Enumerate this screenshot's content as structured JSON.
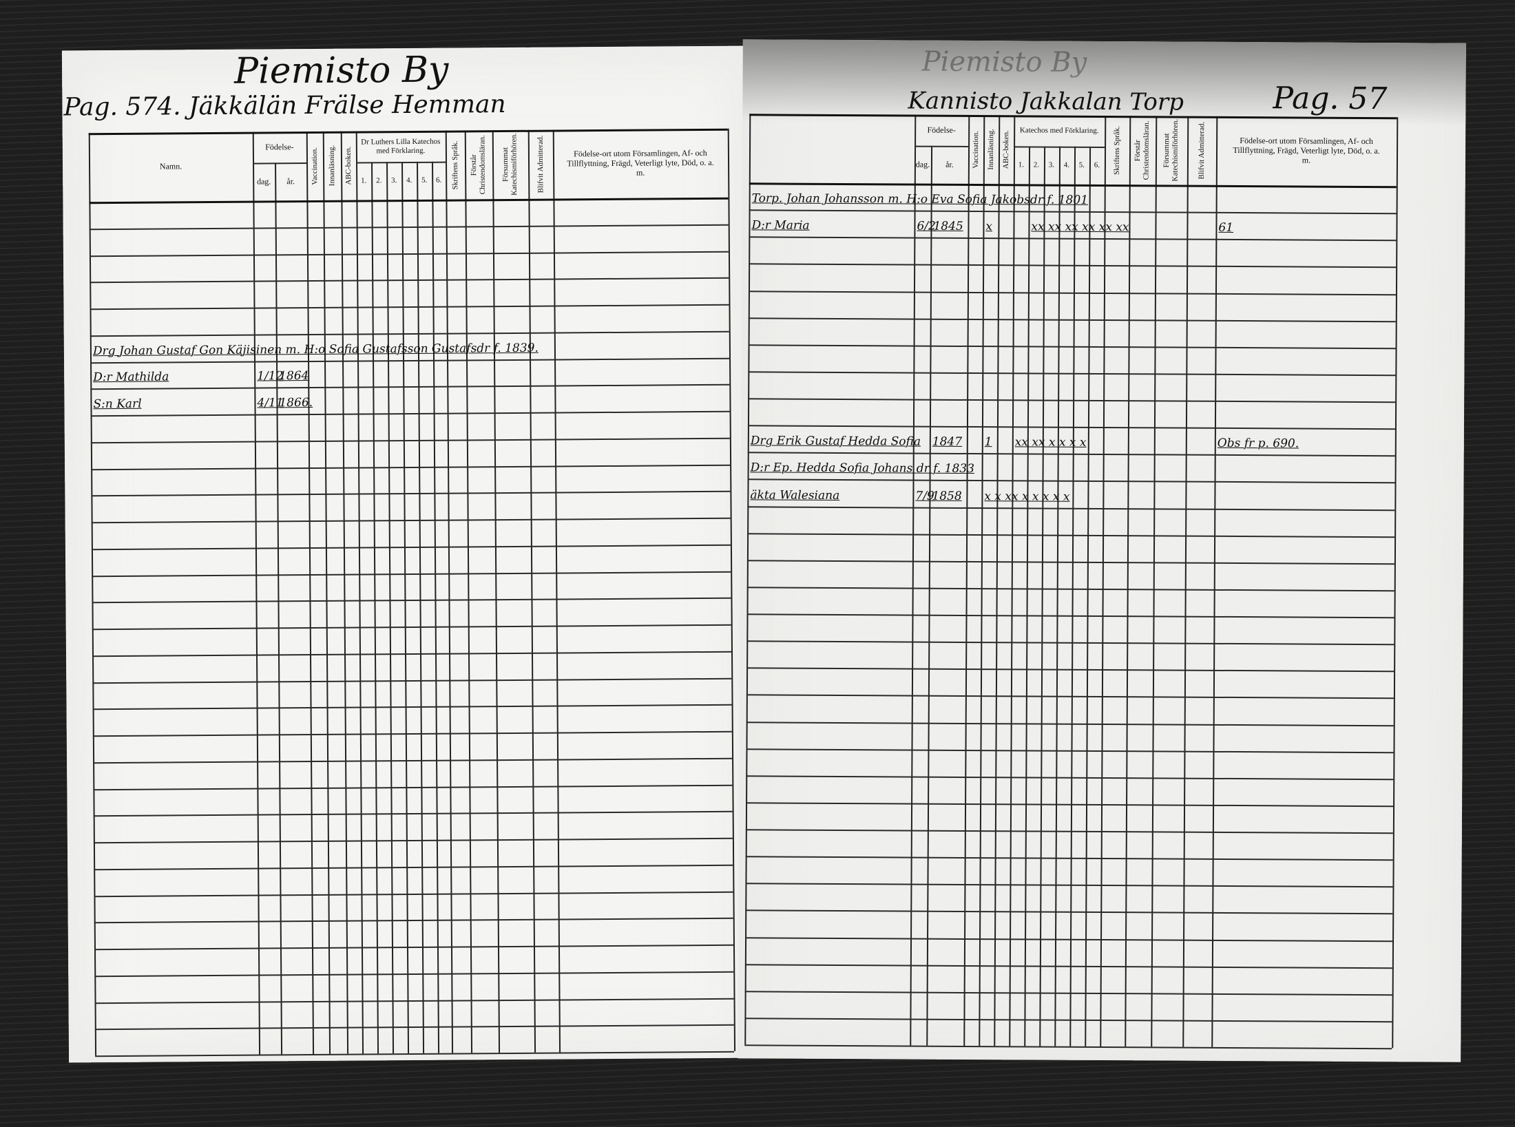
{
  "left_page": {
    "village_title": "Piemisto By",
    "page_title": "Pag. 574. Jäkkälän Frälse Hemman",
    "headers": {
      "name": "Namn.",
      "birth": "Födelse-",
      "day": "dag.",
      "year": "år.",
      "vaccination": "Vaccination.",
      "reading": "Innanläsning.",
      "abc": "ABC-boken.",
      "catechism": "Dr Luthers Lilla Katechos med Förklaring.",
      "cat_nums": [
        "1.",
        "2.",
        "3.",
        "4.",
        "5.",
        "6."
      ],
      "scripture": "Skriftens Språk.",
      "christendom": "Förstår Christendomsläran.",
      "neglected": "Försummat Katechismiförhören.",
      "admitted": "Blifvit Admitterad.",
      "remarks": "Födelse-ort utom Församlingen, Af- och Tillflyttning, Frägd, Veterligt lyte, Död, o. a. m."
    },
    "entries": [
      {
        "row": 5,
        "cells": [
          {
            "col": 0,
            "text": "Drg Johan Gustaf Gon Käjisinen m. H:o Sofia Gustafsson Gustafsdr f. 1839."
          }
        ]
      },
      {
        "row": 6,
        "cells": [
          {
            "col": 0,
            "text": "D:r Mathilda"
          },
          {
            "col": 1,
            "text": "1/12"
          },
          {
            "col": 2,
            "text": "1864"
          }
        ]
      },
      {
        "row": 7,
        "cells": [
          {
            "col": 0,
            "text": "S:n Karl"
          },
          {
            "col": 1,
            "text": "4/11"
          },
          {
            "col": 2,
            "text": "1866."
          }
        ]
      }
    ]
  },
  "right_page": {
    "village_title": "Piemisto By",
    "page_title": "Kannisto Jakkalan Torp",
    "page_number": "Pag. 57",
    "headers": {
      "birth": "Födelse-",
      "day": "dag.",
      "year": "år.",
      "vaccination": "Vaccination.",
      "reading": "Innanläsning.",
      "abc": "ABC-boken.",
      "catechism": "Katechos med Förklaring.",
      "cat_nums": [
        "1.",
        "2.",
        "3.",
        "4.",
        "5.",
        "6."
      ],
      "scripture": "Skriftens Språk.",
      "christendom": "Förstår Christendomsläran.",
      "neglected": "Försummat Katechismiförhören.",
      "admitted": "Blifvit Admitterad.",
      "remarks": "Födelse-ort utom Församlingen, Af- och Tillflyttning, Frägd, Veterligt lyte, Död, o. a. m."
    },
    "entries": [
      {
        "row": 0,
        "cells": [
          {
            "col": 0,
            "text": "Torp. Johan Johansson m. H:o Eva Sofia Jakobsdr f. 1801"
          }
        ]
      },
      {
        "row": 1,
        "cells": [
          {
            "col": 0,
            "text": "D:r Maria"
          },
          {
            "col": 1,
            "text": "6/2"
          },
          {
            "col": 2,
            "text": "1845"
          },
          {
            "col": 4,
            "text": "x"
          },
          {
            "col": 7,
            "text": "xx xx xx xx xx xx"
          },
          {
            "col": 16,
            "text": "61"
          }
        ]
      },
      {
        "row": 9,
        "cells": [
          {
            "col": 0,
            "text": "Drg Erik Gustaf Hedda Sofia"
          },
          {
            "col": 2,
            "text": "1847"
          },
          {
            "col": 4,
            "text": "1"
          },
          {
            "col": 6,
            "text": "xx xx x x x x"
          },
          {
            "col": 17,
            "text": "Obs fr p. 690."
          }
        ]
      },
      {
        "row": 10,
        "cells": [
          {
            "col": 0,
            "text": "D:r Ep. Hedda Sofia Johans dr f. 1833"
          }
        ]
      },
      {
        "row": 11,
        "cells": [
          {
            "col": 0,
            "text": "äkta Walesiana"
          },
          {
            "col": 1,
            "text": "7/9"
          },
          {
            "col": 2,
            "text": "1858"
          },
          {
            "col": 4,
            "text": "x x xx x x x x x"
          }
        ]
      }
    ]
  }
}
